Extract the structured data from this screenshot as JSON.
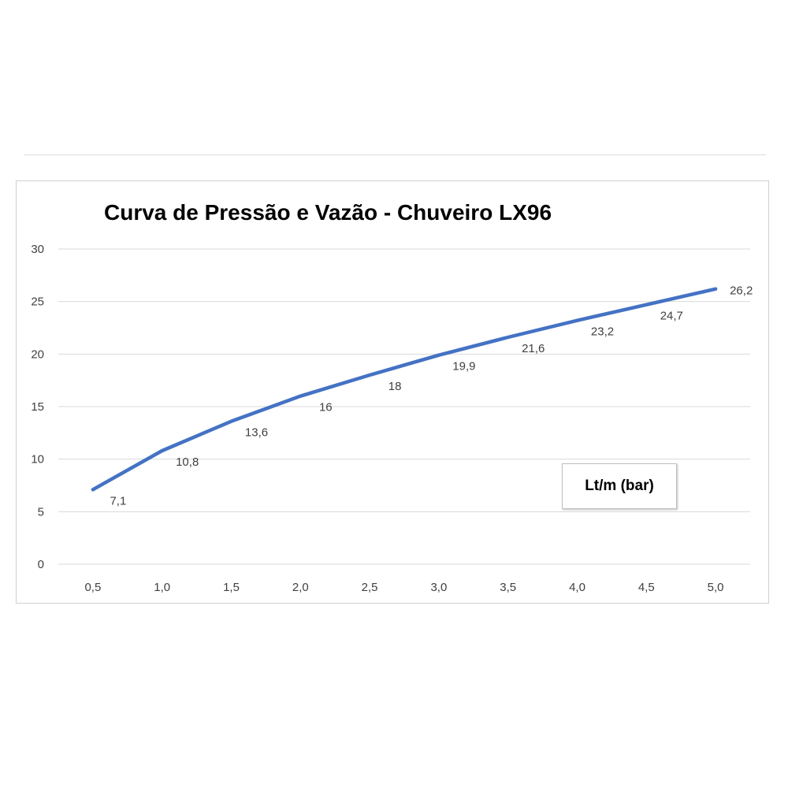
{
  "chart_data": {
    "type": "line",
    "title": "Curva de Pressão e Vazão - Chuveiro LX96",
    "legend_label": "Lt/m (bar)",
    "legend_position": "bottom-right",
    "x": [
      "0,5",
      "1,0",
      "1,5",
      "2,0",
      "2,5",
      "3,0",
      "3,5",
      "4,0",
      "4,5",
      "5,0"
    ],
    "values": [
      7.1,
      10.8,
      13.6,
      16,
      18,
      19.9,
      21.6,
      23.2,
      24.7,
      26.2
    ],
    "data_labels": [
      "7,1",
      "10,8",
      "13,6",
      "16",
      "18",
      "19,9",
      "21,6",
      "23,2",
      "24,7",
      "26,2"
    ],
    "y_ticks": [
      "0",
      "5",
      "10",
      "15",
      "20",
      "25",
      "30"
    ],
    "ylim": [
      0,
      30
    ],
    "grid": true,
    "line_color": "#4472C4"
  }
}
